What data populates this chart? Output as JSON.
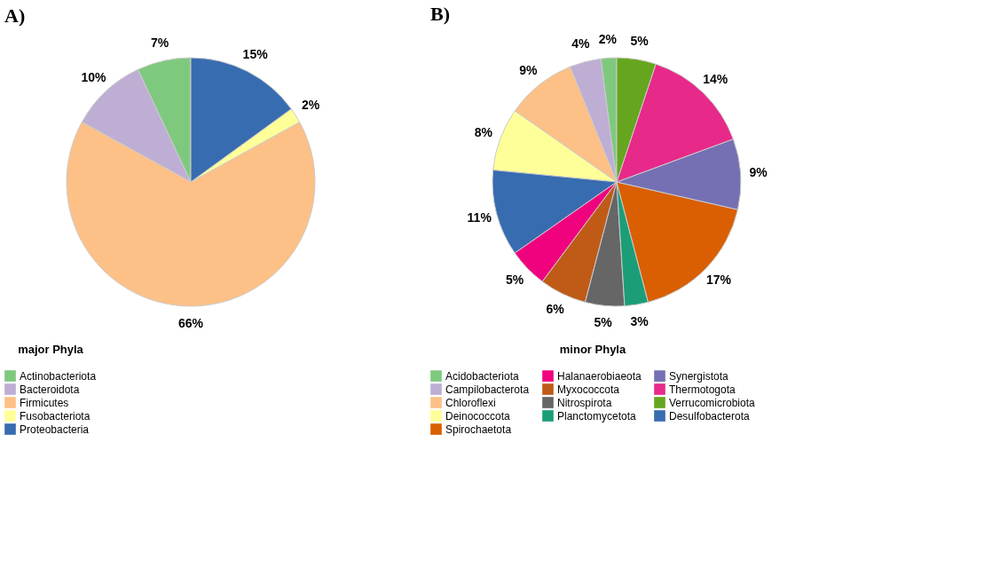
{
  "chart_data": [
    {
      "type": "pie",
      "title": "A)",
      "legend_title": "major Phyla",
      "legend": "bottom",
      "categories": [
        "Actinobacteriota",
        "Bacteroidota",
        "Firmicutes",
        "Fusobacteriota",
        "Proteobacteria"
      ],
      "values": [
        7,
        10,
        66,
        2,
        15
      ],
      "value_labels": [
        "7%",
        "10%",
        "66%",
        "2%",
        "15%"
      ],
      "colors": [
        "#7fc97f",
        "#beaed4",
        "#fdc086",
        "#ffff99",
        "#386cb0"
      ]
    },
    {
      "type": "pie",
      "title": "B)",
      "legend_title": "minor Phyla",
      "legend": "bottom",
      "categories": [
        "Acidobacteriota",
        "Campilobacterota",
        "Chloroflexi",
        "Deinococcota",
        "Desulfobacterota",
        "Halanaerobiaeota",
        "Myxococcota",
        "Nitrospirota",
        "Planctomycetota",
        "Spirochaetota",
        "Synergistota",
        "Thermotogota",
        "Verrucomicrobiota"
      ],
      "values": [
        2,
        4,
        9,
        8,
        11,
        5,
        6,
        5,
        3,
        17,
        9,
        14,
        5
      ],
      "value_labels": [
        "2%",
        "4%",
        "9%",
        "8%",
        "11%",
        "5%",
        "6%",
        "5%",
        "3%",
        "17%",
        "9%",
        "14%",
        "5%"
      ],
      "colors": [
        "#7fc97f",
        "#beaed4",
        "#fdc086",
        "#ffff99",
        "#386cb0",
        "#f0027f",
        "#bf5b17",
        "#666666",
        "#1b9e77",
        "#d95f02",
        "#7570b3",
        "#e7298a",
        "#66a61e"
      ]
    }
  ]
}
